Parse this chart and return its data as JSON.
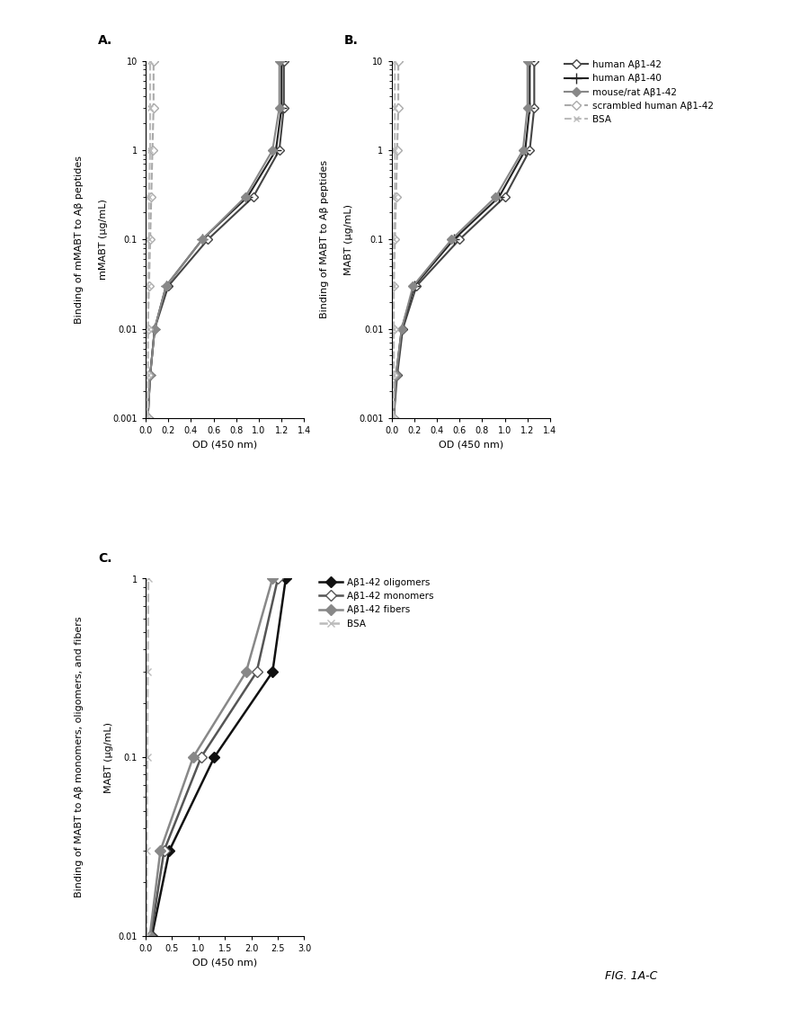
{
  "panel_A": {
    "title": "Binding of mMABT to Aβ peptides",
    "xlabel": "OD (450 nm)",
    "ylabel": "mMABT (µg/mL)",
    "xlim": [
      0.0,
      1.4
    ],
    "ylim": [
      10.0,
      0.001
    ],
    "xticks": [
      0.0,
      0.2,
      0.4,
      0.6,
      0.8,
      1.0,
      1.2,
      1.4
    ],
    "xtick_labels": [
      "0.0",
      "0.2",
      "0.4",
      "0.6",
      "0.8",
      "1.0",
      "1.2",
      "1.4"
    ],
    "yticks": [
      10.0,
      1.0,
      0.1,
      0.01,
      0.001
    ],
    "ytick_labels": [
      "10",
      "1",
      "0.1",
      "0.01",
      "0.001"
    ],
    "series": [
      {
        "label": "human Aβ1-42",
        "y": [
          0.001,
          0.003,
          0.01,
          0.03,
          0.1,
          0.3,
          1.0,
          3.0,
          10.0
        ],
        "x": [
          0.02,
          0.04,
          0.08,
          0.2,
          0.55,
          0.95,
          1.18,
          1.22,
          1.22
        ],
        "color": "#444444",
        "marker": "D",
        "markersize": 5,
        "markerfacecolor": "white",
        "linestyle": "-",
        "linewidth": 1.5
      },
      {
        "label": "human Aβ1-40",
        "y": [
          0.001,
          0.003,
          0.01,
          0.03,
          0.1,
          0.3,
          1.0,
          3.0,
          10.0
        ],
        "x": [
          0.02,
          0.04,
          0.08,
          0.18,
          0.5,
          0.9,
          1.15,
          1.2,
          1.2
        ],
        "color": "#222222",
        "marker": "+",
        "markersize": 8,
        "markerfacecolor": "#222222",
        "linestyle": "-",
        "linewidth": 1.5
      },
      {
        "label": "mouse/rat Aβ1-42",
        "y": [
          0.001,
          0.003,
          0.01,
          0.03,
          0.1,
          0.3,
          1.0,
          3.0,
          10.0
        ],
        "x": [
          0.02,
          0.04,
          0.08,
          0.18,
          0.5,
          0.88,
          1.12,
          1.18,
          1.18
        ],
        "color": "#888888",
        "marker": "D",
        "markersize": 5,
        "markerfacecolor": "#888888",
        "linestyle": "-",
        "linewidth": 1.5
      },
      {
        "label": "scrambled human Aβ1-42",
        "y": [
          0.001,
          0.003,
          0.01,
          0.03,
          0.1,
          0.3,
          1.0,
          3.0,
          10.0
        ],
        "x": [
          0.02,
          0.02,
          0.02,
          0.03,
          0.04,
          0.05,
          0.06,
          0.07,
          0.07
        ],
        "color": "#aaaaaa",
        "marker": "D",
        "markersize": 5,
        "markerfacecolor": "white",
        "linestyle": "--",
        "linewidth": 1.5
      },
      {
        "label": "BSA",
        "y": [
          0.001,
          0.003,
          0.01,
          0.03,
          0.1,
          0.3,
          1.0,
          3.0,
          10.0
        ],
        "x": [
          0.02,
          0.02,
          0.02,
          0.02,
          0.03,
          0.03,
          0.04,
          0.04,
          0.04
        ],
        "color": "#bbbbbb",
        "marker": "x",
        "markersize": 5,
        "markerfacecolor": "#bbbbbb",
        "linestyle": "--",
        "linewidth": 1.5
      }
    ]
  },
  "panel_B": {
    "title": "Binding of MABT to Aβ peptides",
    "xlabel": "OD (450 nm)",
    "ylabel": "MABT (µg/mL)",
    "xlim": [
      0.0,
      1.4
    ],
    "ylim": [
      10.0,
      0.001
    ],
    "xticks": [
      0.0,
      0.2,
      0.4,
      0.6,
      0.8,
      1.0,
      1.2,
      1.4
    ],
    "xtick_labels": [
      "0.0",
      "0.2",
      "0.4",
      "0.6",
      "0.8",
      "1.0",
      "1.2",
      "1.4"
    ],
    "yticks": [
      10.0,
      1.0,
      0.1,
      0.01,
      0.001
    ],
    "ytick_labels": [
      "10",
      "1",
      "0.1",
      "0.01",
      "0.001"
    ],
    "legend_labels": [
      "human Aβ1-42",
      "human Aβ1-40",
      "mouse/rat Aβ1-42",
      "scrambled human Aβ1-42",
      "BSA"
    ],
    "series": [
      {
        "label": "human Aβ1-42",
        "y": [
          0.001,
          0.003,
          0.01,
          0.03,
          0.1,
          0.3,
          1.0,
          3.0,
          10.0
        ],
        "x": [
          0.02,
          0.05,
          0.1,
          0.22,
          0.6,
          1.0,
          1.22,
          1.26,
          1.26
        ],
        "color": "#444444",
        "marker": "D",
        "markersize": 5,
        "markerfacecolor": "white",
        "linestyle": "-",
        "linewidth": 1.5
      },
      {
        "label": "human Aβ1-40",
        "y": [
          0.001,
          0.003,
          0.01,
          0.03,
          0.1,
          0.3,
          1.0,
          3.0,
          10.0
        ],
        "x": [
          0.02,
          0.04,
          0.09,
          0.2,
          0.55,
          0.95,
          1.18,
          1.22,
          1.22
        ],
        "color": "#222222",
        "marker": "+",
        "markersize": 8,
        "markerfacecolor": "#222222",
        "linestyle": "-",
        "linewidth": 1.5
      },
      {
        "label": "mouse/rat Aβ1-42",
        "y": [
          0.001,
          0.003,
          0.01,
          0.03,
          0.1,
          0.3,
          1.0,
          3.0,
          10.0
        ],
        "x": [
          0.02,
          0.04,
          0.09,
          0.19,
          0.53,
          0.92,
          1.16,
          1.2,
          1.2
        ],
        "color": "#888888",
        "marker": "D",
        "markersize": 5,
        "markerfacecolor": "#888888",
        "linestyle": "-",
        "linewidth": 1.5
      },
      {
        "label": "scrambled human Aβ1-42",
        "y": [
          0.001,
          0.003,
          0.01,
          0.03,
          0.1,
          0.3,
          1.0,
          3.0,
          10.0
        ],
        "x": [
          0.02,
          0.02,
          0.02,
          0.02,
          0.03,
          0.04,
          0.05,
          0.06,
          0.06
        ],
        "color": "#aaaaaa",
        "marker": "D",
        "markersize": 5,
        "markerfacecolor": "white",
        "linestyle": "--",
        "linewidth": 1.5
      },
      {
        "label": "BSA",
        "y": [
          0.001,
          0.003,
          0.01,
          0.03,
          0.1,
          0.3,
          1.0,
          3.0,
          10.0
        ],
        "x": [
          0.02,
          0.02,
          0.02,
          0.02,
          0.02,
          0.03,
          0.03,
          0.03,
          0.03
        ],
        "color": "#bbbbbb",
        "marker": "x",
        "markersize": 5,
        "markerfacecolor": "#bbbbbb",
        "linestyle": "--",
        "linewidth": 1.5
      }
    ]
  },
  "panel_C": {
    "title": "Binding of MABT to Aβ monomers, oligomers, and fibers",
    "xlabel": "OD (450 nm)",
    "ylabel": "MABT (µg/mL)",
    "xlim": [
      0.0,
      3.0
    ],
    "ylim": [
      1.0,
      0.01
    ],
    "xticks": [
      0.0,
      0.5,
      1.0,
      1.5,
      2.0,
      2.5,
      3.0
    ],
    "xtick_labels": [
      "0.0",
      "0.5",
      "1.0",
      "1.5",
      "2.0",
      "2.5",
      "3.0"
    ],
    "yticks": [
      1.0,
      0.1,
      0.01
    ],
    "ytick_labels": [
      "1",
      "0.1",
      "0.01"
    ],
    "legend_labels": [
      "Aβ1-42 oligomers",
      "Aβ1-42 monomers",
      "Aβ1-42 fibers",
      "BSA"
    ],
    "series": [
      {
        "label": "Aβ1-42 oligomers",
        "y": [
          0.01,
          0.03,
          0.1,
          0.3,
          1.0
        ],
        "x": [
          0.12,
          0.45,
          1.3,
          2.4,
          2.65
        ],
        "color": "#111111",
        "marker": "D",
        "markersize": 6,
        "markerfacecolor": "#111111",
        "linestyle": "-",
        "linewidth": 1.8
      },
      {
        "label": "Aβ1-42 monomers",
        "y": [
          0.01,
          0.03,
          0.1,
          0.3,
          1.0
        ],
        "x": [
          0.1,
          0.35,
          1.05,
          2.1,
          2.5
        ],
        "color": "#555555",
        "marker": "D",
        "markersize": 6,
        "markerfacecolor": "white",
        "linestyle": "-",
        "linewidth": 1.8
      },
      {
        "label": "Aβ1-42 fibers",
        "y": [
          0.01,
          0.03,
          0.1,
          0.3,
          1.0
        ],
        "x": [
          0.08,
          0.28,
          0.9,
          1.9,
          2.4
        ],
        "color": "#888888",
        "marker": "D",
        "markersize": 6,
        "markerfacecolor": "#888888",
        "linestyle": "-",
        "linewidth": 1.8
      },
      {
        "label": "BSA",
        "y": [
          0.01,
          0.03,
          0.1,
          0.3,
          1.0
        ],
        "x": [
          0.02,
          0.02,
          0.03,
          0.04,
          0.05
        ],
        "color": "#bbbbbb",
        "marker": "x",
        "markersize": 6,
        "markerfacecolor": "#bbbbbb",
        "linestyle": "--",
        "linewidth": 1.8
      }
    ]
  },
  "figure_label": "FIG. 1A-C",
  "bg_color": "#ffffff",
  "label_fontsize": 8,
  "title_fontsize": 8,
  "tick_fontsize": 7,
  "legend_fontsize": 7.5
}
